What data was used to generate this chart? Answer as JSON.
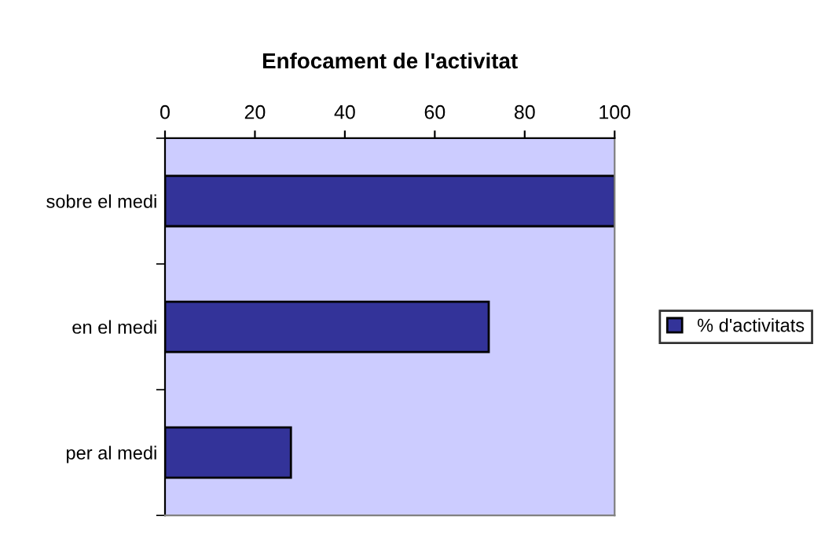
{
  "chart_data": {
    "type": "bar",
    "orientation": "horizontal",
    "title": "Enfocament de l'activitat",
    "categories": [
      "sobre el medi",
      "en el medi",
      "per al medi"
    ],
    "series": [
      {
        "name": "% d'activitats",
        "color": "#333399",
        "values": [
          100,
          72,
          28
        ]
      }
    ],
    "xlim": [
      0,
      100
    ],
    "xticks": [
      0,
      20,
      40,
      60,
      80,
      100
    ],
    "grid": false,
    "legend": "right"
  }
}
